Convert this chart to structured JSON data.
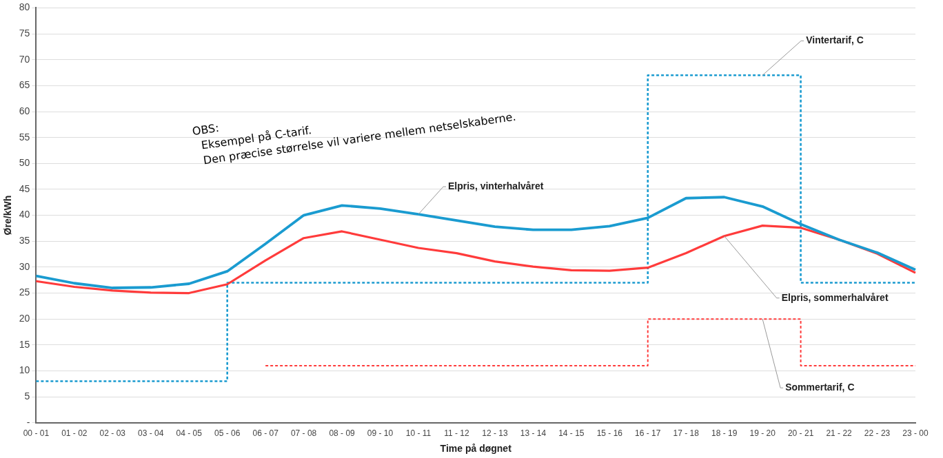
{
  "chart_data": {
    "type": "line",
    "xlabel": "Time på døgnet",
    "ylabel": "Øre/kWh",
    "categories": [
      "00 - 01",
      "01 - 02",
      "02 - 03",
      "03 - 04",
      "04 - 05",
      "05 - 06",
      "06 - 07",
      "07 - 08",
      "08 - 09",
      "09 - 10",
      "10 - 11",
      "11 - 12",
      "12 - 13",
      "13 - 14",
      "14 - 15",
      "15 - 16",
      "16 - 17",
      "17 - 18",
      "18 - 19",
      "19 - 20",
      "20 - 21",
      "21 - 22",
      "22 - 23",
      "23 - 00"
    ],
    "series": [
      {
        "name": "Elpris, vinterhalvåret",
        "color": "#1a9bd0",
        "values": [
          28.3,
          26.9,
          26.0,
          26.1,
          26.8,
          29.2,
          34.5,
          40.0,
          41.9,
          41.3,
          40.2,
          39.0,
          37.8,
          37.2,
          37.2,
          37.9,
          39.5,
          43.3,
          43.5,
          41.7,
          38.3,
          35.3,
          32.8,
          29.5
        ]
      },
      {
        "name": "Elpris, sommerhalvåret",
        "color": "#ff3b3b",
        "values": [
          27.3,
          26.2,
          25.5,
          25.1,
          25.0,
          26.7,
          31.3,
          35.6,
          36.9,
          35.3,
          33.7,
          32.7,
          31.1,
          30.1,
          29.4,
          29.3,
          29.9,
          32.7,
          36.0,
          38.0,
          37.6,
          35.3,
          32.6,
          28.9
        ]
      },
      {
        "name": "Vintertarif, C",
        "type": "step",
        "line_style": "dashed",
        "color": "#1a9bd0",
        "values": [
          8,
          8,
          8,
          8,
          8,
          8,
          27,
          27,
          27,
          27,
          27,
          27,
          27,
          27,
          27,
          27,
          27,
          67,
          67,
          67,
          67,
          27,
          27,
          27
        ]
      },
      {
        "name": "Sommertarif, C",
        "type": "step",
        "line_style": "dashed",
        "color": "#ff3b3b",
        "values": [
          null,
          null,
          null,
          null,
          null,
          null,
          11,
          11,
          11,
          11,
          11,
          11,
          11,
          11,
          11,
          11,
          11,
          20,
          20,
          20,
          20,
          11,
          11,
          11
        ]
      }
    ],
    "ylim": [
      0,
      80
    ],
    "yticks": [
      {
        "value": 0,
        "label": "-"
      },
      5,
      10,
      15,
      20,
      25,
      30,
      35,
      40,
      45,
      50,
      55,
      60,
      65,
      70,
      75,
      80
    ],
    "grid": "y",
    "legend": false,
    "annotations": [
      "OBS:",
      "Eksempel på C-tarif.",
      "Den præcise størrelse vil variere mellem netselskaberne."
    ]
  }
}
